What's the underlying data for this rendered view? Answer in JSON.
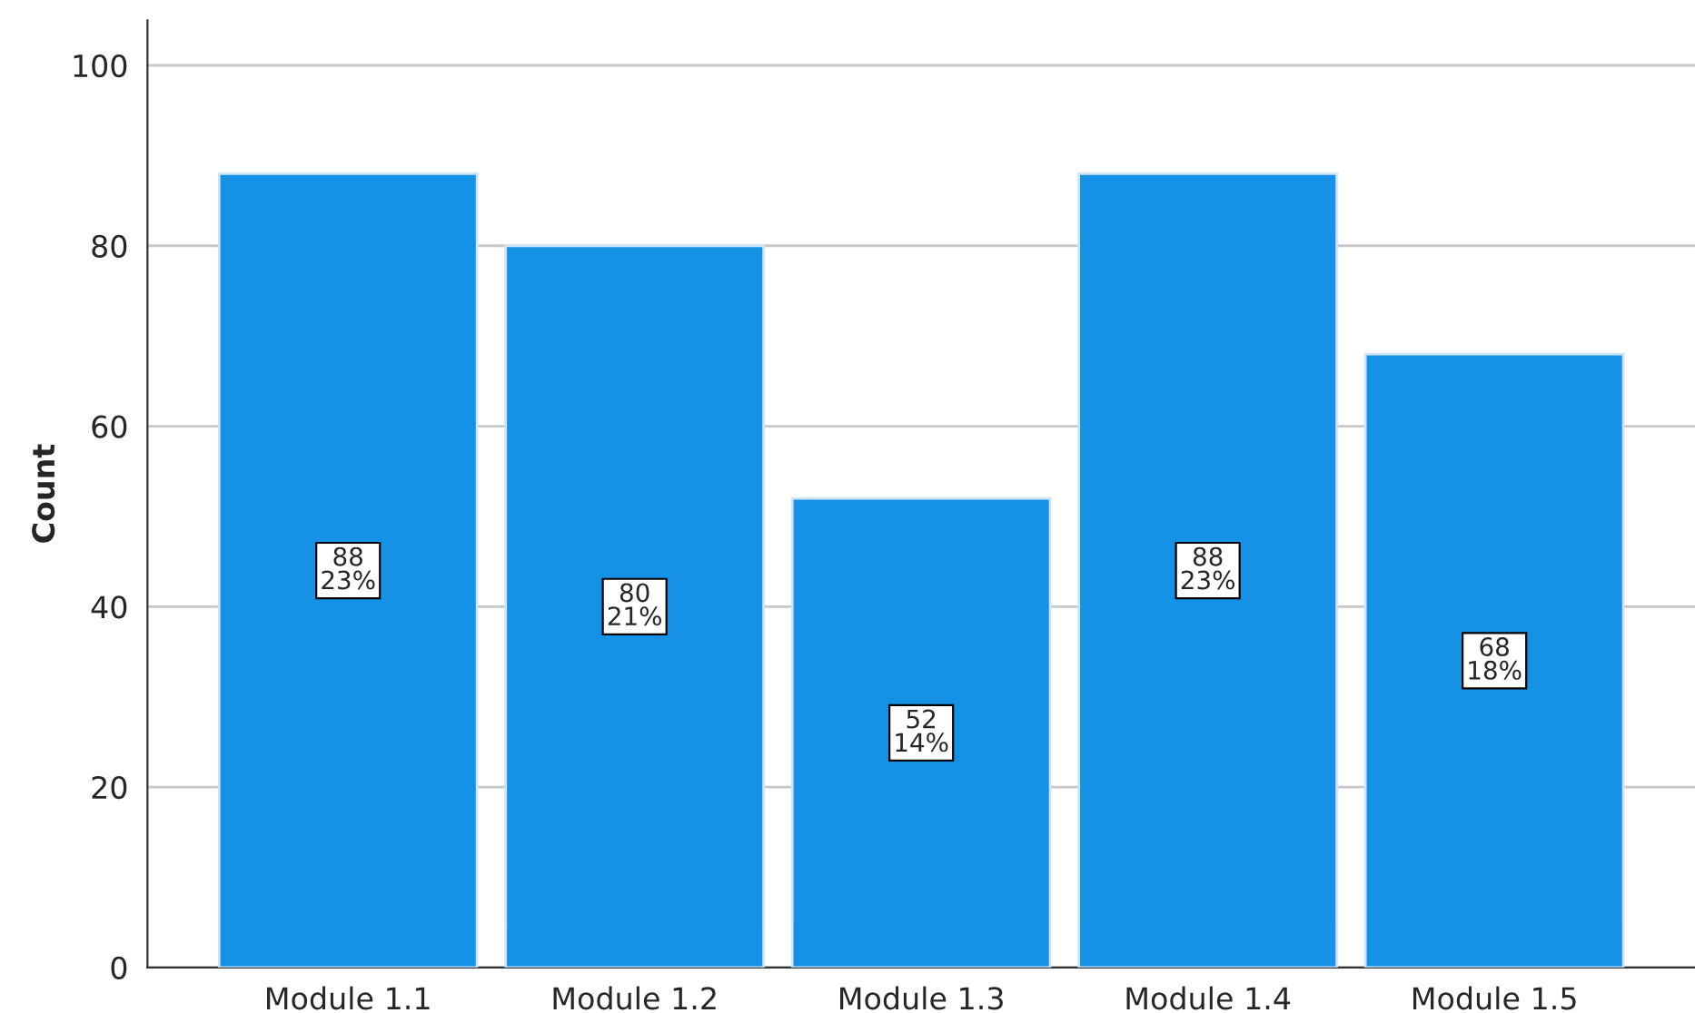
{
  "chart_data": {
    "type": "bar",
    "ylabel": "Count",
    "categories": [
      "Module 1.1",
      "Module 1.2",
      "Module 1.3",
      "Module 1.4",
      "Module 1.5"
    ],
    "values": [
      88,
      80,
      52,
      88,
      68
    ],
    "value_labels": [
      "88\n23%",
      "80\n21%",
      "52\n14%",
      "88\n23%",
      "68\n18%"
    ],
    "color": "#1591e6",
    "ylim": [
      0,
      105
    ],
    "yticks": [
      0,
      20,
      40,
      60,
      80,
      100
    ],
    "grid": "y",
    "legend": false
  }
}
